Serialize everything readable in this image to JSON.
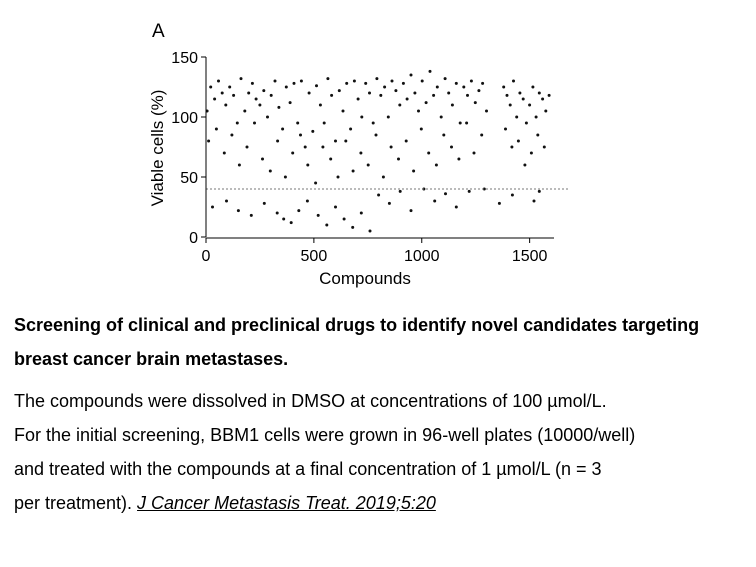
{
  "panel_label": "A",
  "chart_data": {
    "type": "scatter",
    "xlabel": "Compounds",
    "ylabel": "Viable cells (%)",
    "xlim": [
      0,
      1650
    ],
    "ylim": [
      0,
      150
    ],
    "xticks": [
      0,
      500,
      1000,
      1500
    ],
    "yticks": [
      0,
      50,
      100,
      150
    ],
    "threshold": 40,
    "grid": false,
    "point_color": "#111111",
    "series": [
      {
        "x": [
          5,
          22,
          40,
          58,
          75,
          92,
          110,
          128,
          145,
          162,
          180,
          198,
          215,
          232,
          250,
          268,
          285,
          302,
          320,
          338,
          355,
          372,
          390,
          408,
          425,
          442,
          460,
          478,
          495,
          512,
          530,
          548,
          565,
          582,
          600,
          618,
          635,
          652,
          670,
          688,
          705,
          722,
          740,
          758,
          775,
          792,
          810,
          828,
          845,
          862,
          880,
          898,
          915,
          932,
          950,
          968,
          985,
          1002,
          1020,
          1038,
          1055,
          1072,
          1090,
          1108,
          1125,
          1142,
          1160,
          1178,
          1195,
          1212,
          1230,
          1248,
          1265,
          1282,
          1300,
          1380,
          1395,
          1410,
          1425,
          1440,
          1455,
          1470,
          1485,
          1500,
          1515,
          1530,
          1545,
          1560,
          1575,
          1590
        ],
        "y": [
          105,
          125,
          115,
          130,
          120,
          110,
          125,
          118,
          95,
          132,
          105,
          120,
          128,
          115,
          110,
          122,
          100,
          118,
          130,
          108,
          90,
          125,
          112,
          128,
          95,
          130,
          75,
          120,
          88,
          126,
          110,
          95,
          132,
          118,
          80,
          122,
          105,
          128,
          90,
          130,
          115,
          100,
          128,
          120,
          95,
          132,
          118,
          125,
          100,
          130,
          122,
          110,
          128,
          115,
          135,
          120,
          105,
          130,
          112,
          138,
          118,
          125,
          100,
          132,
          120,
          110,
          128,
          95,
          125,
          118,
          130,
          112,
          122,
          128,
          105,
          125,
          118,
          110,
          130,
          100,
          120,
          115,
          95,
          110,
          125,
          100,
          120,
          115,
          105,
          118
        ]
      },
      {
        "x": [
          12,
          48,
          85,
          120,
          155,
          190,
          225,
          262,
          298,
          332,
          368,
          402,
          438,
          472,
          508,
          542,
          578,
          612,
          648,
          682,
          718,
          752,
          788,
          822,
          858,
          892,
          928,
          962,
          998,
          1032,
          1068,
          1102,
          1138,
          1172,
          1208,
          1242,
          1278,
          1388,
          1418,
          1448,
          1478,
          1508,
          1538,
          1568
        ],
        "y": [
          80,
          90,
          70,
          85,
          60,
          75,
          95,
          65,
          55,
          80,
          50,
          70,
          85,
          60,
          45,
          75,
          65,
          50,
          80,
          55,
          70,
          60,
          85,
          50,
          75,
          65,
          80,
          55,
          90,
          70,
          60,
          85,
          75,
          65,
          95,
          70,
          85,
          90,
          75,
          80,
          60,
          70,
          85,
          75
        ]
      },
      {
        "x": [
          30,
          95,
          150,
          210,
          270,
          330,
          360,
          395,
          430,
          470,
          520,
          560,
          600,
          640,
          680,
          720,
          760,
          800,
          850,
          900,
          950,
          1010,
          1060,
          1110,
          1160,
          1220,
          1290,
          1360,
          1420,
          1520,
          1545
        ],
        "y": [
          25,
          30,
          22,
          18,
          28,
          20,
          15,
          12,
          22,
          30,
          18,
          10,
          25,
          15,
          8,
          20,
          5,
          35,
          28,
          38,
          22,
          40,
          30,
          36,
          25,
          38,
          40,
          28,
          35,
          30,
          38
        ]
      }
    ]
  },
  "caption": {
    "title": "Screening of clinical and preclinical drugs to identify novel candidates targeting breast cancer brain metastases.",
    "line1": "The compounds were dissolved in DMSO at concentrations of 100 µmol/L.",
    "line2": "For the initial screening, BBM1 cells were grown in 96-well plates (10000/well)",
    "line3": "and treated with the compounds at a final concentration of 1 µmol/L (n = 3",
    "line4_prefix": "per treatment). ",
    "citation": "J Cancer Metastasis Treat. 2019;5:20"
  }
}
